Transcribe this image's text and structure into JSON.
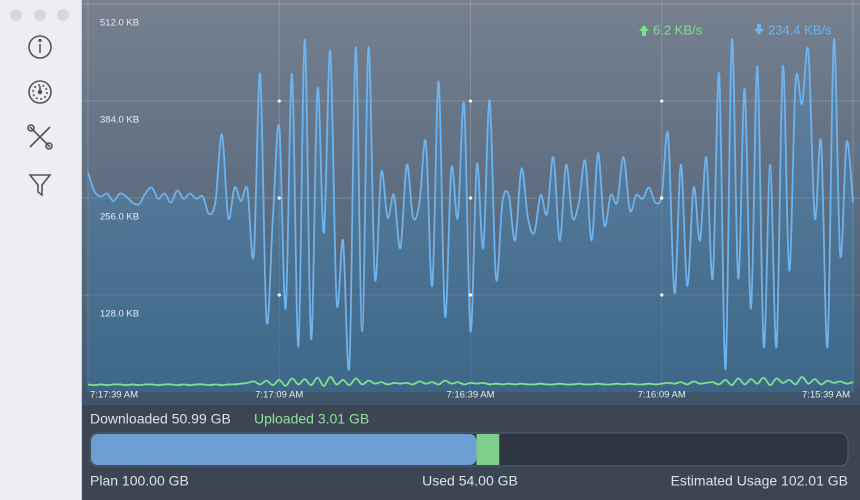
{
  "chart_data": {
    "type": "line",
    "xlim": [
      0,
      120
    ],
    "xticks": [
      {
        "value": 0,
        "label": "7:17:39 AM"
      },
      {
        "value": 30,
        "label": "7:17:09 AM"
      },
      {
        "value": 60,
        "label": "7:16:39 AM"
      },
      {
        "value": 90,
        "label": "7:16:09 AM"
      },
      {
        "value": 120,
        "label": "7:15:39 AM"
      }
    ],
    "ylim": [
      0,
      520
    ],
    "yticks": [
      {
        "value": 128,
        "label": "128.0 KB"
      },
      {
        "value": 256,
        "label": "256.0 KB"
      },
      {
        "value": 384,
        "label": "384.0 KB"
      },
      {
        "value": 512,
        "label": "512.0 KB"
      }
    ],
    "grid": true,
    "x": [
      0,
      1,
      2,
      3,
      4,
      5,
      6,
      7,
      8,
      9,
      10,
      11,
      12,
      13,
      14,
      15,
      16,
      17,
      18,
      19,
      20,
      21,
      22,
      23,
      24,
      25,
      26,
      27,
      28,
      29,
      30,
      31,
      32,
      33,
      34,
      35,
      36,
      37,
      38,
      39,
      40,
      41,
      42,
      43,
      44,
      45,
      46,
      47,
      48,
      49,
      50,
      51,
      52,
      53,
      54,
      55,
      56,
      57,
      58,
      59,
      60,
      61,
      62,
      63,
      64,
      65,
      66,
      67,
      68,
      69,
      70,
      71,
      72,
      73,
      74,
      75,
      76,
      77,
      78,
      79,
      80,
      81,
      82,
      83,
      84,
      85,
      86,
      87,
      88,
      89,
      90,
      91,
      92,
      93,
      94,
      95,
      96,
      97,
      98,
      99,
      100,
      101,
      102,
      103,
      104,
      105,
      106,
      107,
      108,
      109,
      110,
      111,
      112,
      113,
      114,
      115,
      116,
      117,
      118,
      119,
      120
    ],
    "series": [
      {
        "rate": "234.4 KB/s",
        "color": "#6db3ee",
        "values": [
          290,
          265,
          258,
          262,
          252,
          262,
          258,
          250,
          248,
          262,
          270,
          255,
          262,
          250,
          266,
          255,
          262,
          255,
          258,
          235,
          252,
          340,
          230,
          270,
          252,
          268,
          180,
          420,
          95,
          230,
          350,
          110,
          420,
          60,
          465,
          70,
          400,
          210,
          450,
          120,
          200,
          35,
          455,
          80,
          455,
          150,
          290,
          230,
          260,
          190,
          300,
          230,
          250,
          330,
          140,
          410,
          100,
          295,
          230,
          380,
          80,
          300,
          190,
          385,
          150,
          250,
          260,
          200,
          295,
          230,
          210,
          260,
          235,
          310,
          200,
          300,
          230,
          250,
          305,
          200,
          315,
          220,
          260,
          250,
          310,
          240,
          260,
          255,
          270,
          250,
          260,
          340,
          130,
          300,
          140,
          270,
          200,
          310,
          150,
          420,
          30,
          465,
          150,
          400,
          110,
          430,
          60,
          300,
          60,
          430,
          160,
          410,
          380,
          450,
          230,
          330,
          60,
          465,
          180,
          330,
          250
        ]
      },
      {
        "rate": "6.2 KB/s",
        "color": "#7fe08f",
        "values": [
          10,
          9,
          10,
          9,
          10,
          10,
          9,
          10,
          9,
          10,
          10,
          9,
          10,
          10,
          9,
          10,
          9,
          10,
          10,
          9,
          10,
          9,
          10,
          10,
          11,
          12,
          14,
          10,
          15,
          9,
          16,
          8,
          18,
          10,
          17,
          9,
          19,
          8,
          20,
          10,
          16,
          9,
          18,
          10,
          15,
          11,
          13,
          10,
          12,
          11,
          12,
          10,
          14,
          11,
          13,
          10,
          15,
          11,
          13,
          10,
          12,
          11,
          12,
          10,
          11,
          10,
          11,
          10,
          11,
          10,
          10,
          11,
          10,
          10,
          11,
          10,
          10,
          11,
          10,
          10,
          11,
          10,
          10,
          11,
          10,
          11,
          10,
          10,
          11,
          10,
          11,
          12,
          11,
          13,
          10,
          14,
          11,
          12,
          13,
          10,
          16,
          9,
          18,
          10,
          17,
          11,
          19,
          9,
          18,
          12,
          16,
          10,
          20,
          11,
          17,
          10,
          15,
          12,
          14,
          11,
          13
        ]
      }
    ]
  },
  "usage": {
    "downloaded": "Downloaded 50.99 GB",
    "uploaded": "Uploaded 3.01 GB",
    "plan": "Plan 100.00 GB",
    "used": "Used 54.00 GB",
    "estimated": "Estimated Usage 102.01 GB",
    "bar": {
      "max": 100,
      "segments": [
        {
          "value": 50.99,
          "color": "#6e9fd2"
        },
        {
          "value": 3.01,
          "color": "#7dcf8b"
        }
      ]
    }
  }
}
